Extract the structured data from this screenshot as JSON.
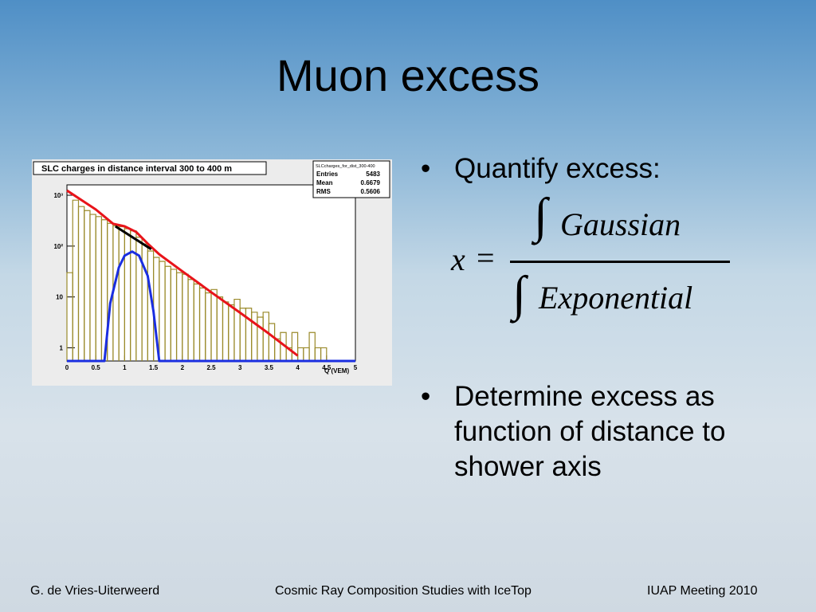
{
  "slide": {
    "title": "Muon excess",
    "bullets": [
      "Quantify excess:",
      "Determine excess as function of distance to shower axis"
    ],
    "formula": {
      "lhs": "x",
      "equals": "=",
      "integral": "∫",
      "numerator": "Gaussian",
      "denominator": "Exponential"
    },
    "footer": {
      "left": "G. de Vries-Uiterweerd",
      "center": "Cosmic Ray Composition Studies with IceTop",
      "right": "IUAP Meeting 2010"
    }
  },
  "chart_data": {
    "type": "histogram",
    "title": "SLC charges in distance interval 300 to 400 m",
    "stats": {
      "name": "SLCcharges_for_dist_300-400",
      "rows": [
        [
          "Entries",
          "5483"
        ],
        [
          "Mean",
          "0.6679"
        ],
        [
          "RMS",
          "0.5606"
        ]
      ]
    },
    "x_label": "Q (VEM)",
    "log_y": true,
    "xlim": [
      0,
      5
    ],
    "xticks": [
      0,
      0.5,
      1,
      1.5,
      2,
      2.5,
      3,
      3.5,
      4,
      4.5,
      5
    ],
    "ylim": [
      0.55,
      1600
    ],
    "yticks": [
      1,
      10,
      {
        "value": 100,
        "label": "10²"
      },
      {
        "value": 1000,
        "label": "10³"
      }
    ],
    "histogram": {
      "color": "#9a8a2a",
      "bins": [
        0,
        0.1,
        0.2,
        0.3,
        0.4,
        0.5,
        0.6,
        0.7,
        0.8,
        0.9,
        1.0,
        1.1,
        1.2,
        1.3,
        1.4,
        1.5,
        1.6,
        1.7,
        1.8,
        1.9,
        2.0,
        2.1,
        2.2,
        2.3,
        2.4,
        2.5,
        2.6,
        2.7,
        2.8,
        2.9,
        3.0,
        3.1,
        3.2,
        3.3,
        3.4,
        3.5,
        3.6,
        3.7,
        3.8,
        3.9,
        4.0,
        4.1,
        4.2,
        4.3,
        4.4,
        4.5
      ],
      "values": [
        30,
        800,
        600,
        500,
        420,
        380,
        330,
        280,
        250,
        240,
        220,
        200,
        150,
        110,
        80,
        60,
        50,
        40,
        35,
        30,
        28,
        22,
        18,
        15,
        12,
        14,
        10,
        8,
        7,
        9,
        6,
        6,
        5,
        4,
        5,
        3,
        1.5,
        2,
        1,
        2,
        1,
        1,
        2,
        1,
        1
      ]
    },
    "series": [
      {
        "color": "#e8141a",
        "x": [
          0,
          0.5,
          0.8,
          1,
          1.2,
          1.4,
          1.6,
          2,
          2.5,
          3,
          3.5,
          4
        ],
        "values": [
          1240,
          525,
          275,
          245,
          190,
          112,
          69,
          32,
          12.4,
          4.9,
          1.9,
          0.7
        ]
      },
      {
        "color": "#000000",
        "x": [
          0.84,
          1.46
        ],
        "values": [
          245,
          87
        ]
      },
      {
        "color": "#1a2ee0",
        "x": [
          0,
          0.65,
          0.75,
          0.9,
          1.0,
          1.13,
          1.25,
          1.4,
          1.5,
          1.6,
          5
        ],
        "values": [
          0.55,
          0.55,
          7.5,
          38,
          65,
          78,
          65,
          26,
          5.2,
          0.55,
          0.55
        ]
      }
    ]
  }
}
